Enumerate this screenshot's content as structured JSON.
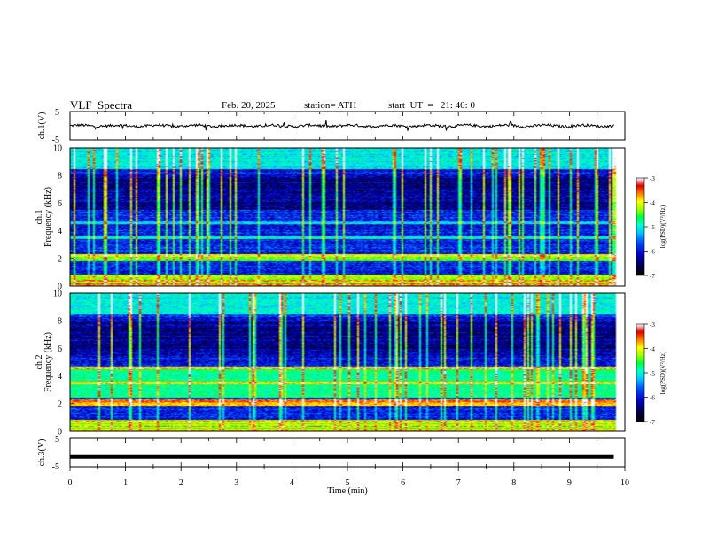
{
  "header": {
    "title": "VLF  Spectra",
    "date": "Feb. 20, 2025",
    "station": "station= ATH",
    "start_ut": "start  UT  =   21: 40: 0"
  },
  "colors": {
    "palette": [
      "#000000",
      "#00004a",
      "#0000c8",
      "#0050ff",
      "#00c8ff",
      "#00ffcc",
      "#00ff40",
      "#a0ff00",
      "#ffff00",
      "#ff8000",
      "#e00000",
      "#ffffff"
    ]
  },
  "chart_data": [
    {
      "type": "line",
      "ylabel": "ch.1(V)",
      "ylim": [
        -5,
        5
      ],
      "yticks": [
        "5",
        "-5"
      ],
      "xlim": [
        0,
        10
      ],
      "description_of_series": "noisy waveform near 0 V",
      "series_level": 0
    },
    {
      "type": "heatmap",
      "ylabel_channel": "ch.1",
      "ylabel": "Frequency  (kHz)",
      "ylim": [
        0,
        10
      ],
      "yticks": [
        "0",
        "2",
        "4",
        "6",
        "8",
        "10"
      ],
      "xlim": [
        0,
        10
      ],
      "colorbar": {
        "label": "log(PSD)(V²/Hz)",
        "range": [
          -7,
          -3
        ],
        "ticks": [
          "-3",
          "-4",
          "-5",
          "-6",
          "-7"
        ]
      }
    },
    {
      "type": "heatmap",
      "ylabel_channel": "ch.2",
      "ylabel": "Frequency  (kHz)",
      "ylim": [
        0,
        10
      ],
      "yticks": [
        "0",
        "2",
        "4",
        "6",
        "8",
        "10"
      ],
      "xlim": [
        0,
        10
      ],
      "colorbar": {
        "label": "log(PSD)(V²/Hz)",
        "range": [
          -7,
          -3
        ],
        "ticks": [
          "-3",
          "-4",
          "-5",
          "-6",
          "-7"
        ]
      }
    },
    {
      "type": "line",
      "ylabel": "ch.3(V)",
      "ylim": [
        -5,
        5
      ],
      "yticks": [
        "5",
        "-5"
      ],
      "xlim": [
        0,
        10
      ],
      "series_level": -1.5
    }
  ],
  "xaxis": {
    "label": "Time  (min)",
    "ticks": [
      "0",
      "1",
      "2",
      "3",
      "4",
      "5",
      "6",
      "7",
      "8",
      "9",
      "10"
    ]
  }
}
